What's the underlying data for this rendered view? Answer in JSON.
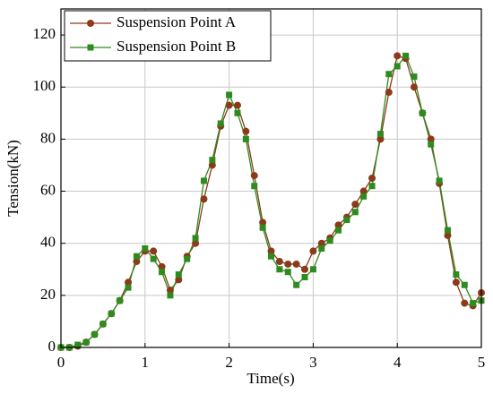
{
  "chart_data": {
    "type": "line",
    "x_label": "Time(s)",
    "y_label": "Tension(kN)",
    "x": [
      0,
      0.1,
      0.2,
      0.3,
      0.4,
      0.5,
      0.6,
      0.7,
      0.8,
      0.9,
      1,
      1.1,
      1.2,
      1.3,
      1.4,
      1.5,
      1.6,
      1.7,
      1.8,
      1.9,
      2,
      2.1,
      2.2,
      2.3,
      2.4,
      2.5,
      2.6,
      2.7,
      2.8,
      2.9,
      3,
      3.1,
      3.2,
      3.3,
      3.4,
      3.5,
      3.6,
      3.7,
      3.8,
      3.9,
      4,
      4.1,
      4.2,
      4.3,
      4.4,
      4.5,
      4.6,
      4.7,
      4.8,
      4.9,
      5
    ],
    "series": [
      {
        "name": "Suspension Point A",
        "color": "#8b3a1a",
        "marker": "circle",
        "values": [
          0,
          0,
          0.5,
          2,
          5,
          9,
          13,
          18,
          25,
          33,
          37,
          37,
          31,
          22,
          26,
          35,
          40,
          57,
          70,
          85,
          93,
          93,
          83,
          66,
          48,
          37,
          33,
          32,
          32,
          30,
          37,
          40,
          42,
          47,
          50,
          55,
          60,
          65,
          80,
          98,
          112,
          111,
          100,
          90,
          80,
          63,
          43,
          25,
          17,
          16,
          21
        ]
      },
      {
        "name": "Suspension Point B",
        "color": "#2e8b1e",
        "marker": "square",
        "values": [
          0,
          0,
          1,
          2,
          5,
          9,
          13,
          18,
          23,
          35,
          38,
          34,
          29,
          20,
          28,
          34,
          42,
          64,
          72,
          86,
          97,
          90,
          80,
          62,
          46,
          35,
          30,
          29,
          24,
          27,
          30,
          38,
          41,
          45,
          49,
          52,
          58,
          62,
          82,
          105,
          108,
          112,
          104,
          90,
          78,
          64,
          45,
          28,
          24,
          17,
          18
        ]
      }
    ],
    "xlim": [
      0,
      5
    ],
    "xticks": [
      0,
      1,
      2,
      3,
      4,
      5
    ],
    "ylim": [
      0,
      130
    ],
    "yticks": [
      0,
      20,
      40,
      60,
      80,
      100,
      120
    ],
    "grid": true,
    "legend": "upper left"
  }
}
